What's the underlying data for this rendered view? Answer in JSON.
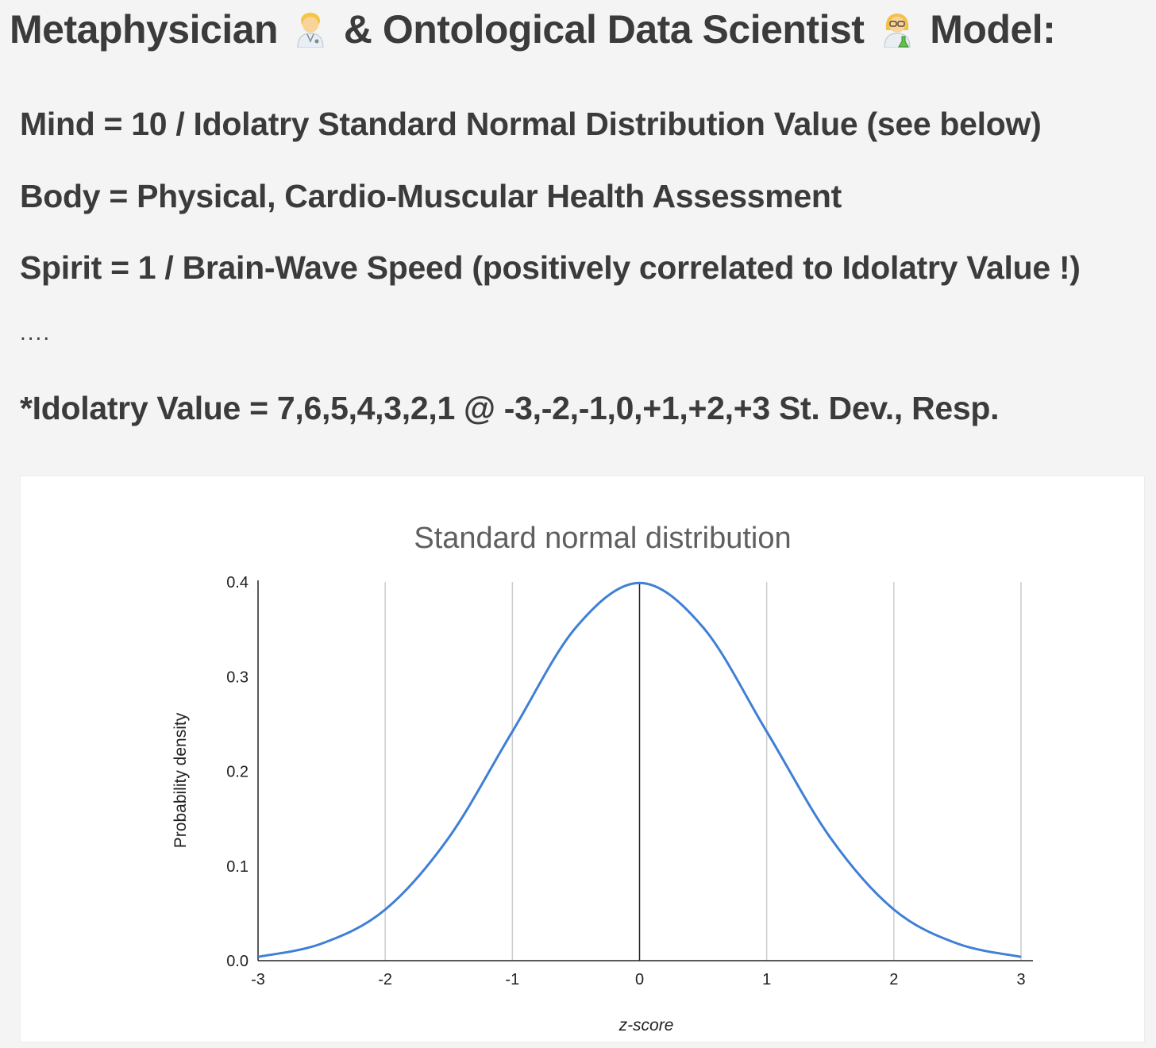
{
  "heading": {
    "part1": "Metaphysician",
    "emoji1": "man-health-worker-icon",
    "part2": "& Ontological Data Scientist",
    "emoji2": "woman-scientist-icon",
    "part3": "Model:"
  },
  "lines": {
    "mind": "Mind = 10 / Idolatry Standard Normal Distribution Value (see below)",
    "body": "Body = Physical, Cardio-Muscular Health Assessment",
    "spirit": "Spirit = 1 / Brain-Wave Speed (positively correlated to Idolatry Value !)",
    "ellipsis": "....",
    "idolatry": "*Idolatry Value = 7,6,5,4,3,2,1 @ -3,-2,-1,0,+1,+2,+3 St. Dev., Resp."
  },
  "chart_data": {
    "type": "line",
    "title": "Standard normal distribution",
    "xlabel": "z-score",
    "ylabel": "Probability density",
    "xlim": [
      -3,
      3
    ],
    "ylim": [
      0,
      0.4
    ],
    "x_ticks": [
      "-3",
      "-2",
      "-1",
      "0",
      "1",
      "2",
      "3"
    ],
    "y_ticks": [
      "0.0",
      "0.1",
      "0.2",
      "0.3",
      "0.4"
    ],
    "grid": "vertical",
    "line_color": "#3f7fd6",
    "series": [
      {
        "x": [
          -3,
          -2.5,
          -2,
          -1.5,
          -1,
          -0.5,
          0,
          0.5,
          1,
          1.5,
          2,
          2.5,
          3
        ],
        "y": [
          0.004,
          0.018,
          0.054,
          0.13,
          0.242,
          0.352,
          0.399,
          0.352,
          0.242,
          0.13,
          0.054,
          0.018,
          0.004
        ]
      }
    ]
  }
}
